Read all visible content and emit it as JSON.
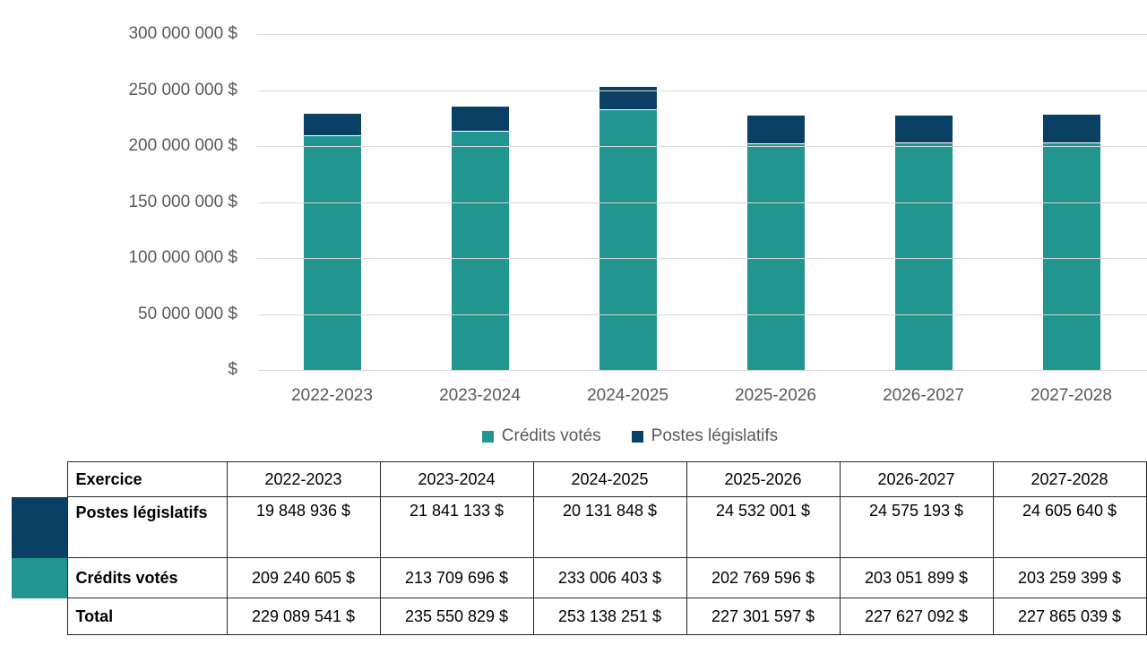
{
  "colors": {
    "teal": "#21958f",
    "navy": "#0a4064",
    "gridline": "#d9d9d9",
    "axis_text": "#595959",
    "table_border": "#262626"
  },
  "chart_data": {
    "type": "bar",
    "stacked": true,
    "title": "",
    "xlabel": "",
    "ylabel": "",
    "grid": true,
    "legend_position": "bottom",
    "ylim": [
      0,
      300000000
    ],
    "y_tick_labels": [
      "300 000 000 $",
      "250 000 000 $",
      "200 000 000 $",
      "150 000 000 $",
      "100 000 000 $",
      "50 000 000 $",
      "$"
    ],
    "categories": [
      "2022-2023",
      "2023-2024",
      "2024-2025",
      "2025-2026",
      "2026-2027",
      "2027-2028"
    ],
    "series": [
      {
        "id": "credits-votes",
        "name": "Crédits votés",
        "color_key": "teal",
        "values": [
          209240605,
          213709696,
          233006403,
          202769596,
          203051899,
          203259399
        ]
      },
      {
        "id": "postes-legislatifs",
        "name": "Postes législatifs",
        "color_key": "navy",
        "values": [
          19848936,
          21841133,
          20131848,
          24532001,
          24575193,
          24605640
        ]
      }
    ]
  },
  "legend": {
    "items": [
      {
        "label": "Crédits votés",
        "color_key": "teal"
      },
      {
        "label": "Postes législatifs",
        "color_key": "navy"
      }
    ]
  },
  "table": {
    "header": {
      "label": "Exercice",
      "columns": [
        "2022-2023",
        "2023-2024",
        "2024-2025",
        "2025-2026",
        "2026-2027",
        "2027-2028"
      ]
    },
    "rows": [
      {
        "id": "postes-legislatifs",
        "label": "Postes législatifs",
        "swatch": "navy",
        "tall": true,
        "values": [
          "19 848 936 $",
          "21 841 133 $",
          "20 131 848 $",
          "24 532 001 $",
          "24 575 193 $",
          "24 605 640 $"
        ]
      },
      {
        "id": "credits-votes",
        "label": "Crédits votés",
        "swatch": "teal",
        "tall": false,
        "values": [
          "209 240 605 $",
          "213 709 696 $",
          "233 006 403 $",
          "202 769 596 $",
          "203 051 899 $",
          "203 259 399 $"
        ]
      },
      {
        "id": "total",
        "label": "Total",
        "swatch": null,
        "tall": false,
        "values": [
          "229 089 541 $",
          "235 550 829 $",
          "253 138 251 $",
          "227 301 597 $",
          "227 627 092 $",
          "227 865 039 $"
        ]
      }
    ]
  }
}
